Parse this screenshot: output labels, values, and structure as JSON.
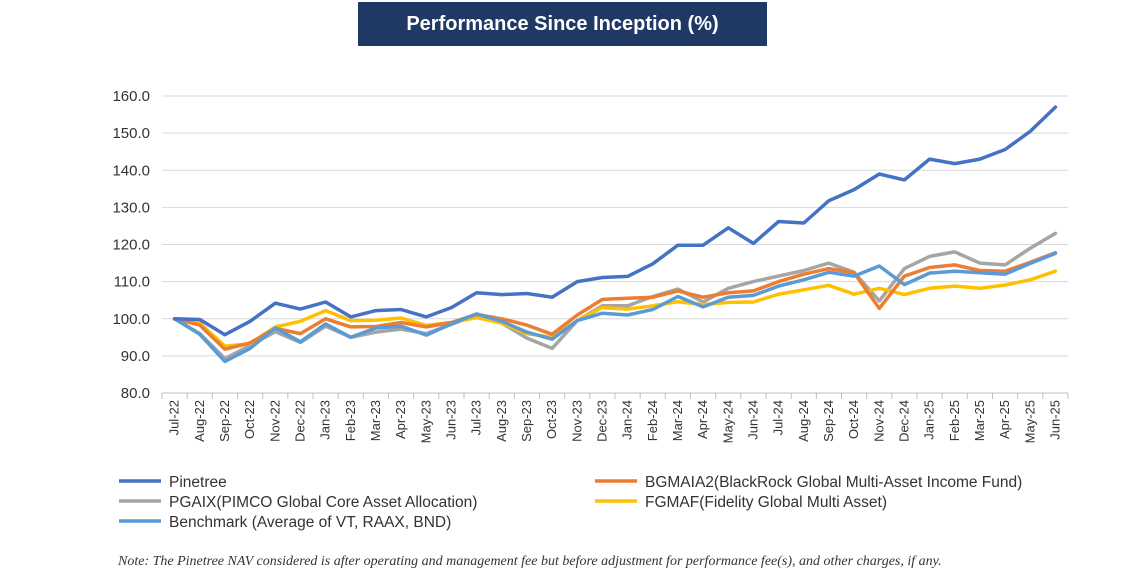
{
  "chart_data": {
    "type": "line",
    "title": "Performance Since Inception (%)",
    "ylim": [
      80,
      160
    ],
    "y_ticks": [
      "80.0",
      "90.0",
      "100.0",
      "110.0",
      "120.0",
      "130.0",
      "140.0",
      "150.0",
      "160.0"
    ],
    "x": [
      "Jul-22",
      "Aug-22",
      "Sep-22",
      "Oct-22",
      "Nov-22",
      "Dec-22",
      "Jan-23",
      "Feb-23",
      "Mar-23",
      "Apr-23",
      "May-23",
      "Jun-23",
      "Jul-23",
      "Aug-23",
      "Sep-23",
      "Oct-23",
      "Nov-23",
      "Dec-23",
      "Jan-24",
      "Feb-24",
      "Mar-24",
      "Apr-24",
      "May-24",
      "Jun-24",
      "Jul-24",
      "Aug-24",
      "Sep-24",
      "Oct-24",
      "Nov-24",
      "Dec-24",
      "Jan-25",
      "Feb-25",
      "Mar-25",
      "Apr-25",
      "May-25",
      "Jun-25"
    ],
    "grid": true,
    "legend_position": "bottom",
    "series": [
      {
        "name": "Pinetree",
        "color": "#4472c4",
        "values": [
          100.0,
          99.8,
          95.7,
          99.3,
          104.2,
          102.6,
          104.5,
          100.5,
          102.2,
          102.5,
          100.5,
          103.0,
          107.0,
          106.5,
          106.8,
          105.8,
          110.0,
          111.1,
          111.4,
          114.8,
          119.8,
          119.8,
          124.5,
          120.3,
          126.2,
          125.8,
          131.8,
          134.8,
          139.0,
          137.4,
          143.0,
          141.8,
          143.0,
          145.6,
          150.5,
          157.0
        ]
      },
      {
        "name": "BGMAIA2(BlackRock Global Multi-Asset Income Fund)",
        "color": "#ed7d31",
        "values": [
          100.0,
          98.3,
          91.8,
          93.5,
          97.4,
          96.0,
          100.0,
          97.8,
          97.9,
          99.0,
          97.8,
          99.0,
          101.2,
          100.0,
          98.3,
          95.8,
          101.0,
          105.2,
          105.5,
          105.8,
          107.5,
          105.8,
          107.0,
          107.5,
          110.0,
          112.0,
          113.5,
          112.4,
          102.8,
          111.5,
          113.8,
          114.5,
          113.0,
          112.8,
          115.2,
          117.8
        ]
      },
      {
        "name": "PGAIX(PIMCO Global Core Asset Allocation)",
        "color": "#a5a5a5",
        "values": [
          100.0,
          96.0,
          89.3,
          92.8,
          96.5,
          93.6,
          98.0,
          95.0,
          96.4,
          97.2,
          96.0,
          98.5,
          101.0,
          98.8,
          94.8,
          92.0,
          99.5,
          103.5,
          103.5,
          106.0,
          108.0,
          104.5,
          108.2,
          110.0,
          111.5,
          113.0,
          115.0,
          112.5,
          104.8,
          113.5,
          116.8,
          118.0,
          115.0,
          114.5,
          119.0,
          123.0
        ]
      },
      {
        "name": "FGMAF(Fidelity Global Multi Asset)",
        "color": "#ffc000",
        "values": [
          100.0,
          98.8,
          92.6,
          93.3,
          97.8,
          99.3,
          102.2,
          99.5,
          99.6,
          100.2,
          98.2,
          99.0,
          100.3,
          98.8,
          96.0,
          95.0,
          99.5,
          103.0,
          102.6,
          103.5,
          104.6,
          103.8,
          104.4,
          104.5,
          106.6,
          107.8,
          109.0,
          106.6,
          108.2,
          106.5,
          108.2,
          108.8,
          108.2,
          109.1,
          110.5,
          112.8
        ]
      },
      {
        "name": "Benchmark (Average of VT, RAAX, BND)",
        "color": "#5b9bd5",
        "values": [
          100.0,
          95.8,
          88.5,
          92.0,
          97.5,
          93.8,
          98.6,
          95.0,
          97.5,
          98.0,
          95.6,
          98.6,
          101.3,
          99.3,
          96.4,
          94.5,
          99.5,
          101.5,
          101.0,
          102.5,
          106.0,
          103.2,
          105.8,
          106.3,
          108.8,
          110.5,
          112.5,
          111.5,
          114.2,
          109.2,
          112.3,
          112.8,
          112.4,
          112.0,
          114.9,
          117.6
        ]
      }
    ]
  },
  "note": "Note: The Pinetree NAV considered is after operating and management fee but before adjustment for performance fee(s), and other charges, if any."
}
